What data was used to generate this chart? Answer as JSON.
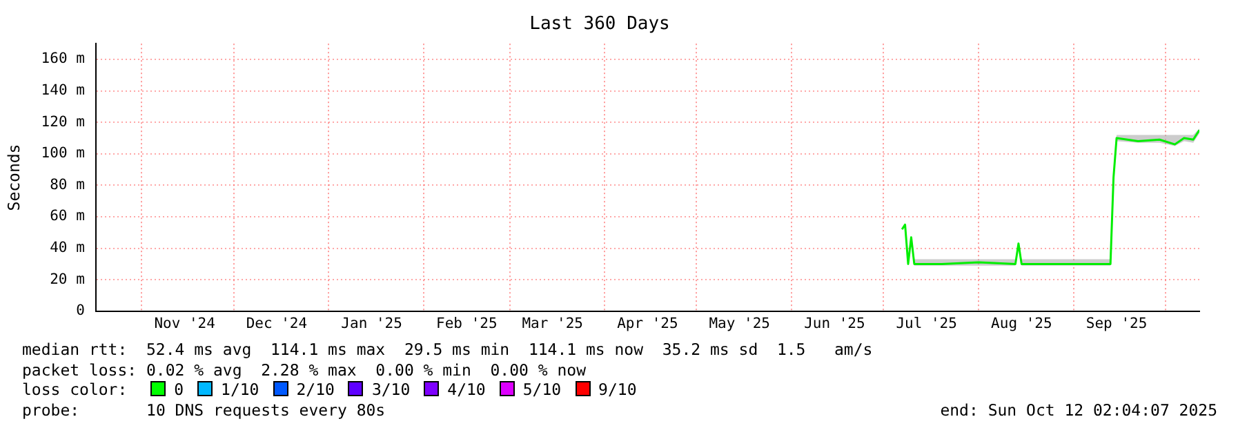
{
  "chart_data": {
    "type": "line",
    "title": "Last 360 Days",
    "ylabel": "Seconds",
    "xlim": [
      "2024-10-17",
      "2025-10-12"
    ],
    "xticks": [
      {
        "value": "2024-11-01",
        "label": null
      },
      {
        "value": "2024-11-15",
        "label": "Nov '24"
      },
      {
        "value": "2024-12-01",
        "label": null
      },
      {
        "value": "2024-12-15",
        "label": "Dec '24"
      },
      {
        "value": "2025-01-01",
        "label": null
      },
      {
        "value": "2025-01-15",
        "label": "Jan '25"
      },
      {
        "value": "2025-02-01",
        "label": null
      },
      {
        "value": "2025-02-15",
        "label": "Feb '25"
      },
      {
        "value": "2025-03-01",
        "label": null
      },
      {
        "value": "2025-03-15",
        "label": "Mar '25"
      },
      {
        "value": "2025-04-01",
        "label": null
      },
      {
        "value": "2025-04-15",
        "label": "Apr '25"
      },
      {
        "value": "2025-05-01",
        "label": null
      },
      {
        "value": "2025-05-15",
        "label": "May '25"
      },
      {
        "value": "2025-06-01",
        "label": null
      },
      {
        "value": "2025-06-15",
        "label": "Jun '25"
      },
      {
        "value": "2025-07-01",
        "label": null
      },
      {
        "value": "2025-07-15",
        "label": "Jul '25"
      },
      {
        "value": "2025-08-01",
        "label": null
      },
      {
        "value": "2025-08-15",
        "label": "Aug '25"
      },
      {
        "value": "2025-09-01",
        "label": null
      },
      {
        "value": "2025-09-15",
        "label": "Sep '25"
      },
      {
        "value": "2025-10-01",
        "label": null
      }
    ],
    "ylim": [
      0,
      170
    ],
    "yticks": [
      0,
      {
        "value": 20,
        "label": "20 m"
      },
      {
        "value": 40,
        "label": "40 m"
      },
      {
        "value": 60,
        "label": "60 m"
      },
      {
        "value": 80,
        "label": "80 m"
      },
      {
        "value": 100,
        "label": "100 m"
      },
      {
        "value": 120,
        "label": "120 m"
      },
      {
        "value": 140,
        "label": "140 m"
      },
      {
        "value": 160,
        "label": "160 m"
      }
    ],
    "grid": true,
    "legend": false,
    "marker": "none",
    "line_style": "solid",
    "series": [
      {
        "color": "#00ee00",
        "x": [
          "2025-07-07",
          "2025-07-08",
          "2025-07-09",
          "2025-07-10",
          "2025-07-11",
          "2025-07-20",
          "2025-08-01",
          "2025-08-13",
          "2025-08-14",
          "2025-08-15",
          "2025-08-30",
          "2025-09-13",
          "2025-09-14",
          "2025-09-15",
          "2025-09-22",
          "2025-09-29",
          "2025-10-04",
          "2025-10-07",
          "2025-10-10",
          "2025-10-12"
        ],
        "values": [
          52,
          55,
          30,
          47,
          30,
          30,
          31,
          30,
          43,
          30,
          30,
          30,
          85,
          110,
          108,
          109,
          106,
          110,
          109,
          115
        ],
        "lower": [
          52,
          55,
          30,
          47,
          29,
          29,
          29,
          29,
          43,
          29,
          29,
          29,
          85,
          108,
          107,
          107,
          105,
          108,
          107,
          113
        ],
        "upper": [
          52,
          55,
          30,
          47,
          33,
          33,
          33,
          33,
          43,
          33,
          33,
          33,
          85,
          112,
          112,
          112,
          112,
          112,
          112,
          116
        ]
      }
    ],
    "annotations": [
      "median rtt:  52.4 ms avg  114.1 ms max  29.5 ms min  114.1 ms now  35.2 ms sd  1.5   am/s",
      "packet loss: 0.02 % avg  2.28 % max  0.00 % min  0.00 % now",
      "loss color:",
      "0",
      "1/10",
      "2/10",
      "3/10",
      "4/10",
      "5/10",
      "9/10",
      "probe:",
      "10 DNS requests every 80s",
      "end: Sun Oct 12 02:04:07 2025"
    ]
  }
}
